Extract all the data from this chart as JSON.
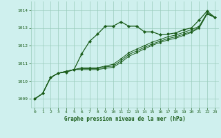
{
  "background_color": "#cff0ee",
  "grid_color": "#99ccbb",
  "line_color": "#1a5c1a",
  "text_color": "#1a5c1a",
  "xlabel": "Graphe pression niveau de la mer (hPa)",
  "xlim": [
    -0.5,
    23.5
  ],
  "ylim": [
    1008.5,
    1014.5
  ],
  "yticks": [
    1009,
    1010,
    1011,
    1012,
    1013,
    1014
  ],
  "xticks": [
    0,
    1,
    2,
    3,
    4,
    5,
    6,
    7,
    8,
    9,
    10,
    11,
    12,
    13,
    14,
    15,
    16,
    17,
    18,
    19,
    20,
    21,
    22,
    23
  ],
  "series1": [
    1009.0,
    1009.3,
    1010.2,
    1010.45,
    1010.5,
    1010.65,
    1011.55,
    1012.25,
    1012.65,
    1013.1,
    1013.1,
    1013.35,
    1013.1,
    1013.1,
    1012.78,
    1012.78,
    1012.62,
    1012.65,
    1012.72,
    1012.9,
    1013.0,
    1013.45,
    1013.95,
    1013.6
  ],
  "series2": [
    1009.0,
    1009.3,
    1010.2,
    1010.45,
    1010.55,
    1010.65,
    1010.75,
    1010.75,
    1010.75,
    1010.85,
    1010.95,
    1011.25,
    1011.6,
    1011.8,
    1012.0,
    1012.2,
    1012.35,
    1012.5,
    1012.6,
    1012.75,
    1012.9,
    1013.1,
    1013.85,
    1013.6
  ],
  "series3": [
    1009.0,
    1009.3,
    1010.2,
    1010.45,
    1010.55,
    1010.65,
    1010.7,
    1010.7,
    1010.7,
    1010.8,
    1010.85,
    1011.15,
    1011.5,
    1011.7,
    1011.9,
    1012.1,
    1012.25,
    1012.4,
    1012.5,
    1012.65,
    1012.8,
    1013.05,
    1013.8,
    1013.6
  ],
  "series4": [
    1009.0,
    1009.3,
    1010.2,
    1010.45,
    1010.55,
    1010.65,
    1010.65,
    1010.65,
    1010.65,
    1010.72,
    1010.78,
    1011.05,
    1011.4,
    1011.6,
    1011.82,
    1012.02,
    1012.18,
    1012.32,
    1012.42,
    1012.58,
    1012.75,
    1013.0,
    1013.78,
    1013.6
  ]
}
